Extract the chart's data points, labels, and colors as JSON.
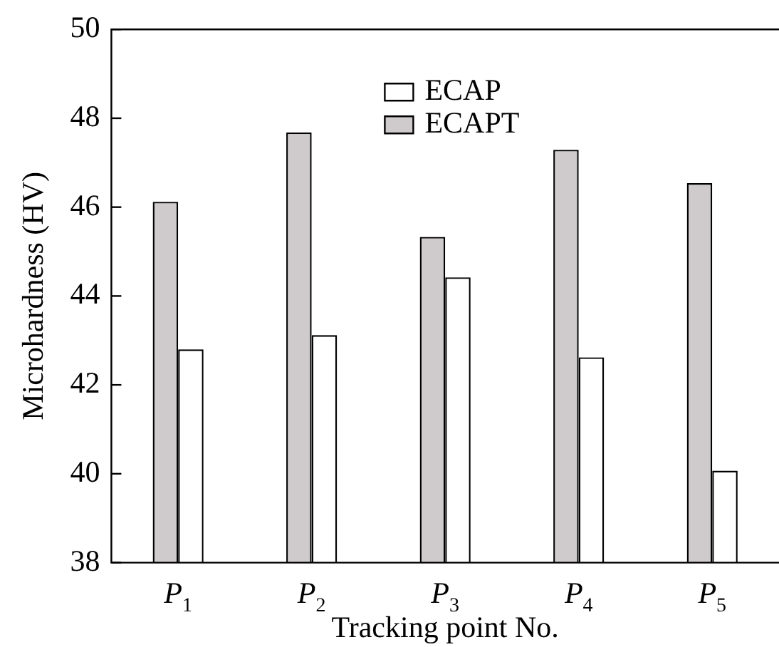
{
  "chart_data": {
    "type": "bar",
    "xlabel": "Tracking point No.",
    "ylabel": "Microhardness (HV)",
    "categories": [
      "P$_{1}$",
      "P$_{2}$",
      "P$_{3}$",
      "P$_{4}$",
      "P$_{5}$"
    ],
    "series": [
      {
        "name": "ECAPT",
        "color": "#cfcbcc",
        "values": [
          46.12,
          47.68,
          45.33,
          47.29,
          46.54
        ]
      },
      {
        "name": "ECAP",
        "color": "#ffffff",
        "values": [
          42.8,
          43.12,
          44.42,
          42.62,
          40.07
        ]
      }
    ],
    "ylim": [
      38,
      50
    ],
    "yticks": [
      38,
      40,
      42,
      44,
      46,
      48,
      50
    ],
    "grid": false,
    "legend": "top"
  }
}
